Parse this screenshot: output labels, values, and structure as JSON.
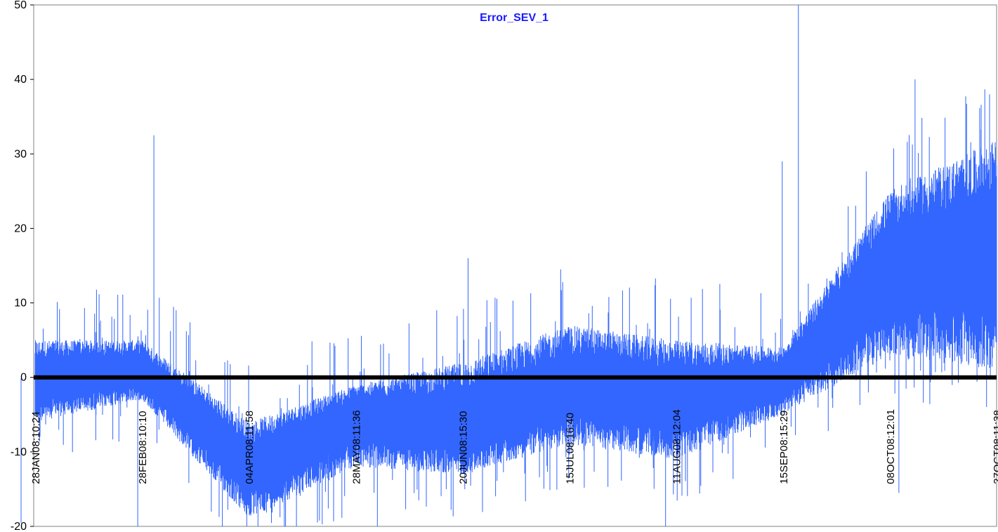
{
  "colors": {
    "series": "#3366ff",
    "title": "#1a1aff",
    "zero_line": "#000000",
    "plot_border": "#808080",
    "background": "#ffffff"
  },
  "chart_data": {
    "type": "line",
    "title": "Error_SEV_1",
    "xlabel": "",
    "ylabel": "",
    "ylim": [
      -20,
      50
    ],
    "y_ticks": [
      -20,
      -10,
      0,
      10,
      20,
      30,
      40,
      50
    ],
    "y_tick_labels": [
      "-20",
      "-10",
      "0",
      "10",
      "20",
      "30",
      "40",
      "50"
    ],
    "grid": false,
    "legend": "none",
    "x_tick_labels": [
      "28JAN08:10:24",
      "28FEB08:10:10",
      "04APR08:11:58",
      "28MAY08:11:36",
      "20JUN08:15:30",
      "15JUL08:16:40",
      "11AUG08:12:04",
      "15SEP08:15:29",
      "08OCT08:12:01",
      "27OCT08:11:38"
    ],
    "zero_reference_line": 0,
    "series": [
      {
        "x": [
          "28JAN08:10:24",
          "28FEB08:10:10",
          "04APR08:11:58",
          "28MAY08:11:36",
          "20JUN08:15:30",
          "15JUL08:16:40",
          "11AUG08:12:04",
          "15SEP08:15:29",
          "08OCT08:12:01",
          "27OCT08:11:38"
        ],
        "values": [
          0,
          1,
          -12,
          -5,
          -6,
          -1,
          -3,
          0,
          15,
          17
        ],
        "envelope_low": [
          -6,
          -3,
          -19,
          -12,
          -13,
          -9,
          -11,
          -5,
          3,
          1
        ],
        "envelope_high": [
          5,
          5,
          -6,
          -1,
          2,
          7,
          5,
          4,
          25,
          32
        ],
        "spikes": [
          {
            "x": "28JAN08:10:24",
            "value": -19.5
          },
          {
            "x": "28FEB08:10:10",
            "value": 32.5
          },
          {
            "x": "28FEB08:10:10",
            "value": -20
          },
          {
            "x": "28MAY08:11:36",
            "value": -20
          },
          {
            "x": "20JUN08:15:30",
            "value": 16
          },
          {
            "x": "11AUG08:12:04",
            "value": -20
          },
          {
            "x": "15SEP08:15:29",
            "value": 50
          },
          {
            "x": "15SEP08:15:29",
            "value": 29
          },
          {
            "x": "08OCT08:12:01",
            "value": 40
          },
          {
            "x": "08OCT08:12:01",
            "value": -15.5
          },
          {
            "x": "27OCT08:11:38",
            "value": 38
          }
        ]
      }
    ]
  }
}
